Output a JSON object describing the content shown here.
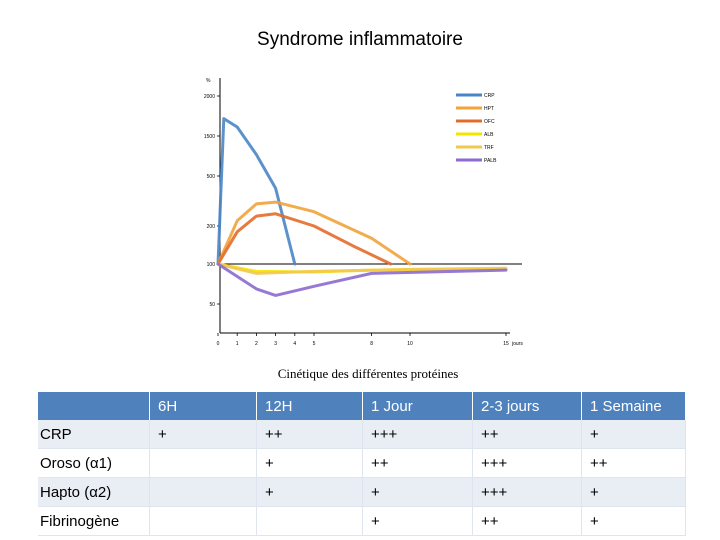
{
  "page": {
    "title": "Syndrome inflammatoire"
  },
  "chart_data": {
    "type": "line",
    "title": "Cinétique des différentes protéines",
    "ylabel": "%",
    "xlabel": "jours",
    "y_ticks": [
      "2000",
      "1500",
      "500",
      "200",
      "100",
      "50"
    ],
    "x_ticks": [
      "0",
      "1",
      "2",
      "3",
      "4",
      "5",
      "8",
      "10",
      "15"
    ],
    "x_tick_values": [
      0,
      1,
      2,
      3,
      4,
      5,
      8,
      10,
      15
    ],
    "xlim": [
      0,
      15
    ],
    "series": [
      {
        "name": "CRP",
        "color": "#4a86c7",
        "points": [
          [
            0,
            100
          ],
          [
            0.3,
            1700
          ],
          [
            1,
            1600
          ],
          [
            2,
            900
          ],
          [
            3,
            400
          ],
          [
            4,
            100
          ]
        ]
      },
      {
        "name": "HPT",
        "color": "#f2a33a",
        "points": [
          [
            0,
            100
          ],
          [
            1,
            220
          ],
          [
            2,
            300
          ],
          [
            3,
            310
          ],
          [
            5,
            260
          ],
          [
            8,
            160
          ],
          [
            10,
            100
          ]
        ]
      },
      {
        "name": "OFC",
        "color": "#e36c2a",
        "points": [
          [
            0,
            100
          ],
          [
            1,
            180
          ],
          [
            2,
            240
          ],
          [
            3,
            250
          ],
          [
            5,
            200
          ],
          [
            7,
            140
          ],
          [
            9,
            100
          ]
        ]
      },
      {
        "name": "ALB",
        "color": "#f5e400",
        "points": [
          [
            0,
            100
          ],
          [
            2,
            88
          ],
          [
            5,
            87
          ],
          [
            8,
            90
          ],
          [
            15,
            92
          ]
        ]
      },
      {
        "name": "TRF",
        "color": "#f1c84f",
        "points": [
          [
            0,
            100
          ],
          [
            2,
            85
          ],
          [
            5,
            88
          ],
          [
            10,
            91
          ],
          [
            15,
            93
          ]
        ]
      },
      {
        "name": "PALB",
        "color": "#8c6ad0",
        "points": [
          [
            0,
            100
          ],
          [
            2,
            65
          ],
          [
            3,
            58
          ],
          [
            5,
            68
          ],
          [
            8,
            85
          ],
          [
            15,
            90
          ]
        ]
      }
    ],
    "reference_line": 100
  },
  "table": {
    "headers": [
      "",
      "6H",
      "12H",
      "1 Jour",
      "2-3 jours",
      "1 Semaine"
    ],
    "rows": [
      [
        "CRP",
        "+",
        "++",
        "+++",
        "++",
        "+"
      ],
      [
        "Oroso (α1)",
        "",
        "+",
        "++",
        "+++",
        "++"
      ],
      [
        "Hapto (α2)",
        "",
        "+",
        "+",
        "+++",
        "+"
      ],
      [
        "Fibrinogène",
        "",
        "",
        "+",
        "++",
        "+"
      ]
    ]
  }
}
